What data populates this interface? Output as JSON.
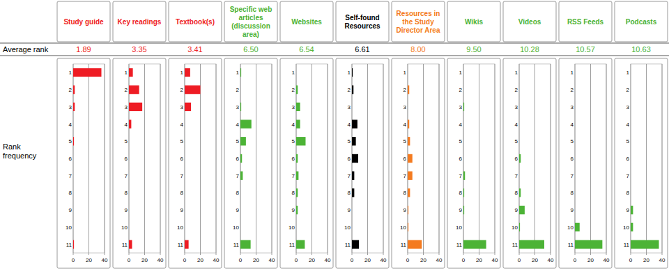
{
  "row_labels": [
    "Average rank",
    "Rank frequency"
  ],
  "chart_data": [
    {
      "type": "bar",
      "orientation": "horizontal",
      "title": "Study guide",
      "average_rank": 1.89,
      "color": "#ee1c24",
      "grid": true,
      "categories": [
        "1",
        "2",
        "3",
        "4",
        "5",
        "6",
        "7",
        "8",
        "9",
        "10",
        "11"
      ],
      "values": [
        36,
        2,
        2,
        0,
        1,
        0,
        0,
        0,
        0,
        0,
        1
      ],
      "xlim": [
        0,
        40
      ],
      "xticks": [
        0,
        20,
        40
      ]
    },
    {
      "type": "bar",
      "orientation": "horizontal",
      "title": "Key readings",
      "average_rank": 3.35,
      "color": "#ee1c24",
      "grid": true,
      "categories": [
        "1",
        "2",
        "3",
        "4",
        "5",
        "6",
        "7",
        "8",
        "9",
        "10",
        "11"
      ],
      "values": [
        5,
        13,
        17,
        3,
        0,
        0,
        0,
        0,
        0,
        0,
        4
      ],
      "xlim": [
        0,
        40
      ],
      "xticks": [
        0,
        20,
        40
      ]
    },
    {
      "type": "bar",
      "orientation": "horizontal",
      "title": "Textbook(s)",
      "average_rank": 3.41,
      "color": "#ee1c24",
      "grid": true,
      "categories": [
        "1",
        "2",
        "3",
        "4",
        "5",
        "6",
        "7",
        "8",
        "9",
        "10",
        "11"
      ],
      "values": [
        7,
        20,
        8,
        0,
        0,
        0,
        0,
        0,
        0,
        0,
        5
      ],
      "xlim": [
        0,
        40
      ],
      "xticks": [
        0,
        20,
        40
      ]
    },
    {
      "type": "bar",
      "orientation": "horizontal",
      "title": "Specific web articles (discussion area)",
      "average_rank": 6.5,
      "color": "#4cb336",
      "grid": true,
      "categories": [
        "1",
        "2",
        "3",
        "4",
        "5",
        "6",
        "7",
        "8",
        "9",
        "10",
        "11"
      ],
      "values": [
        1,
        0,
        1,
        14,
        7,
        2,
        3,
        0,
        0,
        0,
        13
      ],
      "xlim": [
        0,
        40
      ],
      "xticks": [
        0,
        20,
        40
      ]
    },
    {
      "type": "bar",
      "orientation": "horizontal",
      "title": "Websites",
      "average_rank": 6.54,
      "color": "#4cb336",
      "grid": true,
      "categories": [
        "1",
        "2",
        "3",
        "4",
        "5",
        "6",
        "7",
        "8",
        "9",
        "10",
        "11"
      ],
      "values": [
        0,
        2,
        5,
        5,
        12,
        2,
        3,
        2,
        2,
        0,
        11
      ],
      "xlim": [
        0,
        40
      ],
      "xticks": [
        0,
        20,
        40
      ]
    },
    {
      "type": "bar",
      "orientation": "horizontal",
      "title": "Self-found Resources",
      "average_rank": 6.61,
      "color": "#000000",
      "grid": true,
      "categories": [
        "1",
        "2",
        "3",
        "4",
        "5",
        "6",
        "7",
        "8",
        "9",
        "10",
        "11"
      ],
      "values": [
        1,
        2,
        0,
        7,
        5,
        8,
        3,
        3,
        0,
        0,
        9
      ],
      "xlim": [
        0,
        40
      ],
      "xticks": [
        0,
        20,
        40
      ]
    },
    {
      "type": "bar",
      "orientation": "horizontal",
      "title": "Resources in the Study Director Area",
      "average_rank": 8.0,
      "color": "#f47b20",
      "grid": true,
      "categories": [
        "1",
        "2",
        "3",
        "4",
        "5",
        "6",
        "7",
        "8",
        "9",
        "10",
        "11"
      ],
      "values": [
        0,
        2,
        0,
        2,
        3,
        6,
        6,
        3,
        1,
        1,
        18
      ],
      "xlim": [
        0,
        40
      ],
      "xticks": [
        0,
        20,
        40
      ]
    },
    {
      "type": "bar",
      "orientation": "horizontal",
      "title": "Wikis",
      "average_rank": 9.5,
      "color": "#4cb336",
      "grid": true,
      "categories": [
        "1",
        "2",
        "3",
        "4",
        "5",
        "6",
        "7",
        "8",
        "9",
        "10",
        "11"
      ],
      "values": [
        0,
        0,
        1,
        0,
        0,
        0,
        2,
        1,
        1,
        0,
        29
      ],
      "xlim": [
        0,
        40
      ],
      "xticks": [
        0,
        20,
        40
      ]
    },
    {
      "type": "bar",
      "orientation": "horizontal",
      "title": "Videos",
      "average_rank": 10.28,
      "color": "#4cb336",
      "grid": true,
      "categories": [
        "1",
        "2",
        "3",
        "4",
        "5",
        "6",
        "7",
        "8",
        "9",
        "10",
        "11"
      ],
      "values": [
        0,
        0,
        0,
        0,
        0,
        2,
        0,
        2,
        7,
        1,
        32
      ],
      "xlim": [
        0,
        40
      ],
      "xticks": [
        0,
        20,
        40
      ]
    },
    {
      "type": "bar",
      "orientation": "horizontal",
      "title": "RSS Feeds",
      "average_rank": 10.57,
      "color": "#4cb336",
      "grid": true,
      "categories": [
        "1",
        "2",
        "3",
        "4",
        "5",
        "6",
        "7",
        "8",
        "9",
        "10",
        "11"
      ],
      "values": [
        0,
        0,
        0,
        0,
        0,
        0,
        0,
        0,
        0,
        6,
        35
      ],
      "xlim": [
        0,
        40
      ],
      "xticks": [
        0,
        20,
        40
      ]
    },
    {
      "type": "bar",
      "orientation": "horizontal",
      "title": "Podcasts",
      "average_rank": 10.63,
      "color": "#4cb336",
      "grid": true,
      "categories": [
        "1",
        "2",
        "3",
        "4",
        "5",
        "6",
        "7",
        "8",
        "9",
        "10",
        "11"
      ],
      "values": [
        0,
        0,
        0,
        0,
        0,
        0,
        0,
        0,
        3,
        3,
        36
      ],
      "xlim": [
        0,
        40
      ],
      "xticks": [
        0,
        20,
        40
      ]
    }
  ]
}
